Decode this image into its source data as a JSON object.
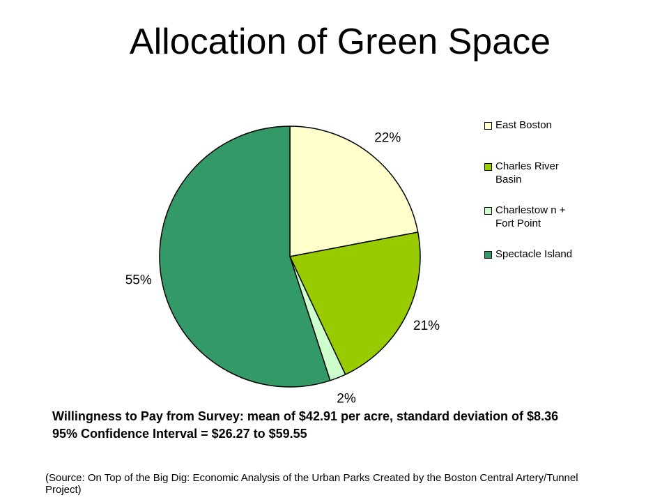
{
  "chart_data": {
    "type": "pie",
    "title": "Allocation of Green Space",
    "categories": [
      "East Boston",
      "Charles River Basin",
      "Charlestow n + Fort Point",
      "Spectacle Island"
    ],
    "values": [
      22,
      21,
      2,
      55
    ],
    "value_labels": [
      "22%",
      "21%",
      "2%",
      "55%"
    ],
    "colors": [
      "#ffffcc",
      "#99cc00",
      "#ccffcc",
      "#339966"
    ],
    "legend": "right"
  },
  "notes": [
    "Willingness to Pay from Survey: mean of $42.91 per acre, standard deviation of $8.36",
    "95% Confidence Interval = $26.27 to $59.55"
  ],
  "source": "(Source: On Top of the Big Dig: Economic Analysis of the Urban Parks Created by the Boston Central Artery/Tunnel Project)"
}
